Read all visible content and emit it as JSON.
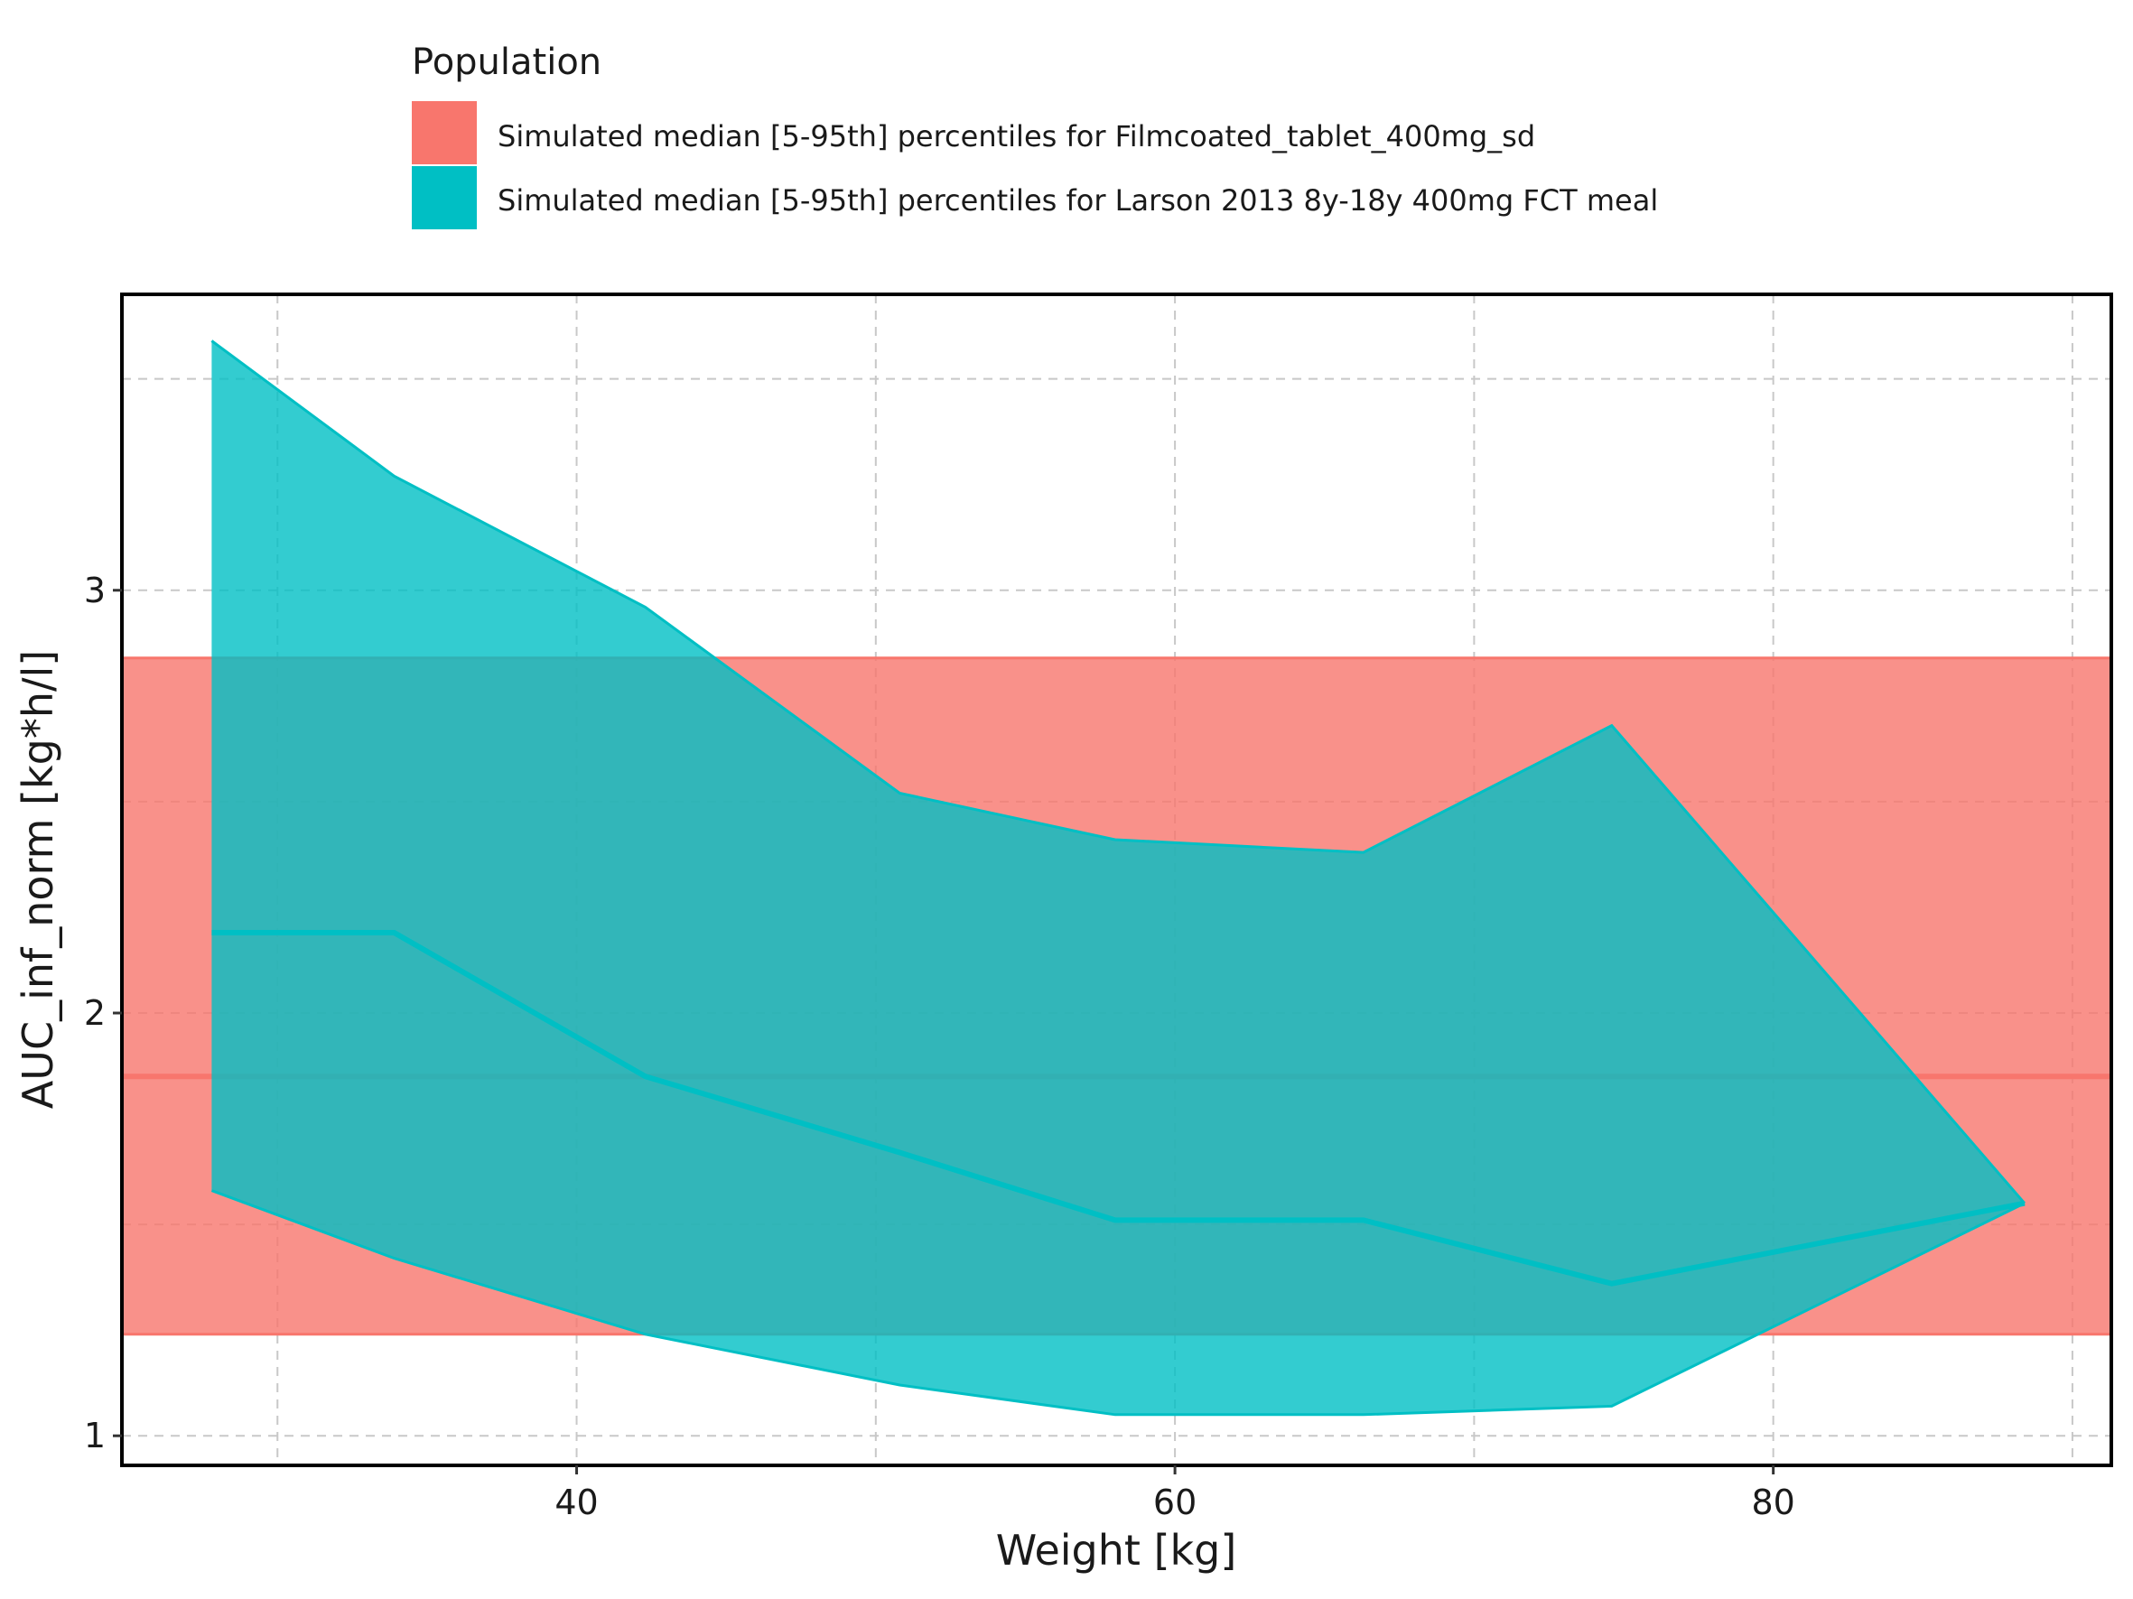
{
  "chart_data": {
    "type": "area",
    "legend": {
      "title": "Population",
      "placement": "top",
      "entries": [
        {
          "label": "Simulated median [5-95th] percentiles for Filmcoated_tablet_400mg_sd",
          "color": "#F8766D"
        },
        {
          "label": "Simulated median [5-95th] percentiles for Larson 2013 8y-18y 400mg FCT meal",
          "color": "#00BFC4"
        }
      ]
    },
    "xlabel": "Weight [kg]",
    "ylabel": "AUC_inf_norm [kg*h/l]",
    "xlim": [
      24.8,
      91.3
    ],
    "ylim": [
      0.93,
      3.7
    ],
    "x_ticks": [
      40,
      60,
      80
    ],
    "x_tick_labels": [
      "40",
      "60",
      "80"
    ],
    "y_ticks": [
      1,
      2,
      3
    ],
    "y_tick_labels": [
      "1",
      "2",
      "3"
    ],
    "x_minor_gridlines": [
      30,
      50,
      70,
      90
    ],
    "y_minor_gridlines": [
      1.5,
      2.5,
      3.5
    ],
    "grid": true,
    "series": [
      {
        "name": "Simulated median [5-95th] percentiles for Filmcoated_tablet_400mg_sd",
        "color": "#F8766D",
        "x": [
          24.8,
          91.3
        ],
        "median": [
          1.85,
          1.85
        ],
        "lower": [
          1.24,
          1.24
        ],
        "upper": [
          2.84,
          2.84
        ]
      },
      {
        "name": "Simulated median [5-95th] percentiles for Larson 2013 8y-18y 400mg FCT meal",
        "color": "#00BFC4",
        "x": [
          27.8,
          33.9,
          42.3,
          50.8,
          58.0,
          66.3,
          74.6,
          88.4
        ],
        "median": [
          2.19,
          2.19,
          1.85,
          1.67,
          1.51,
          1.51,
          1.36,
          1.55
        ],
        "lower": [
          1.58,
          1.42,
          1.24,
          1.12,
          1.05,
          1.05,
          1.07,
          1.55
        ],
        "upper": [
          3.59,
          3.27,
          2.96,
          2.52,
          2.41,
          2.38,
          2.68,
          1.55
        ]
      }
    ]
  }
}
